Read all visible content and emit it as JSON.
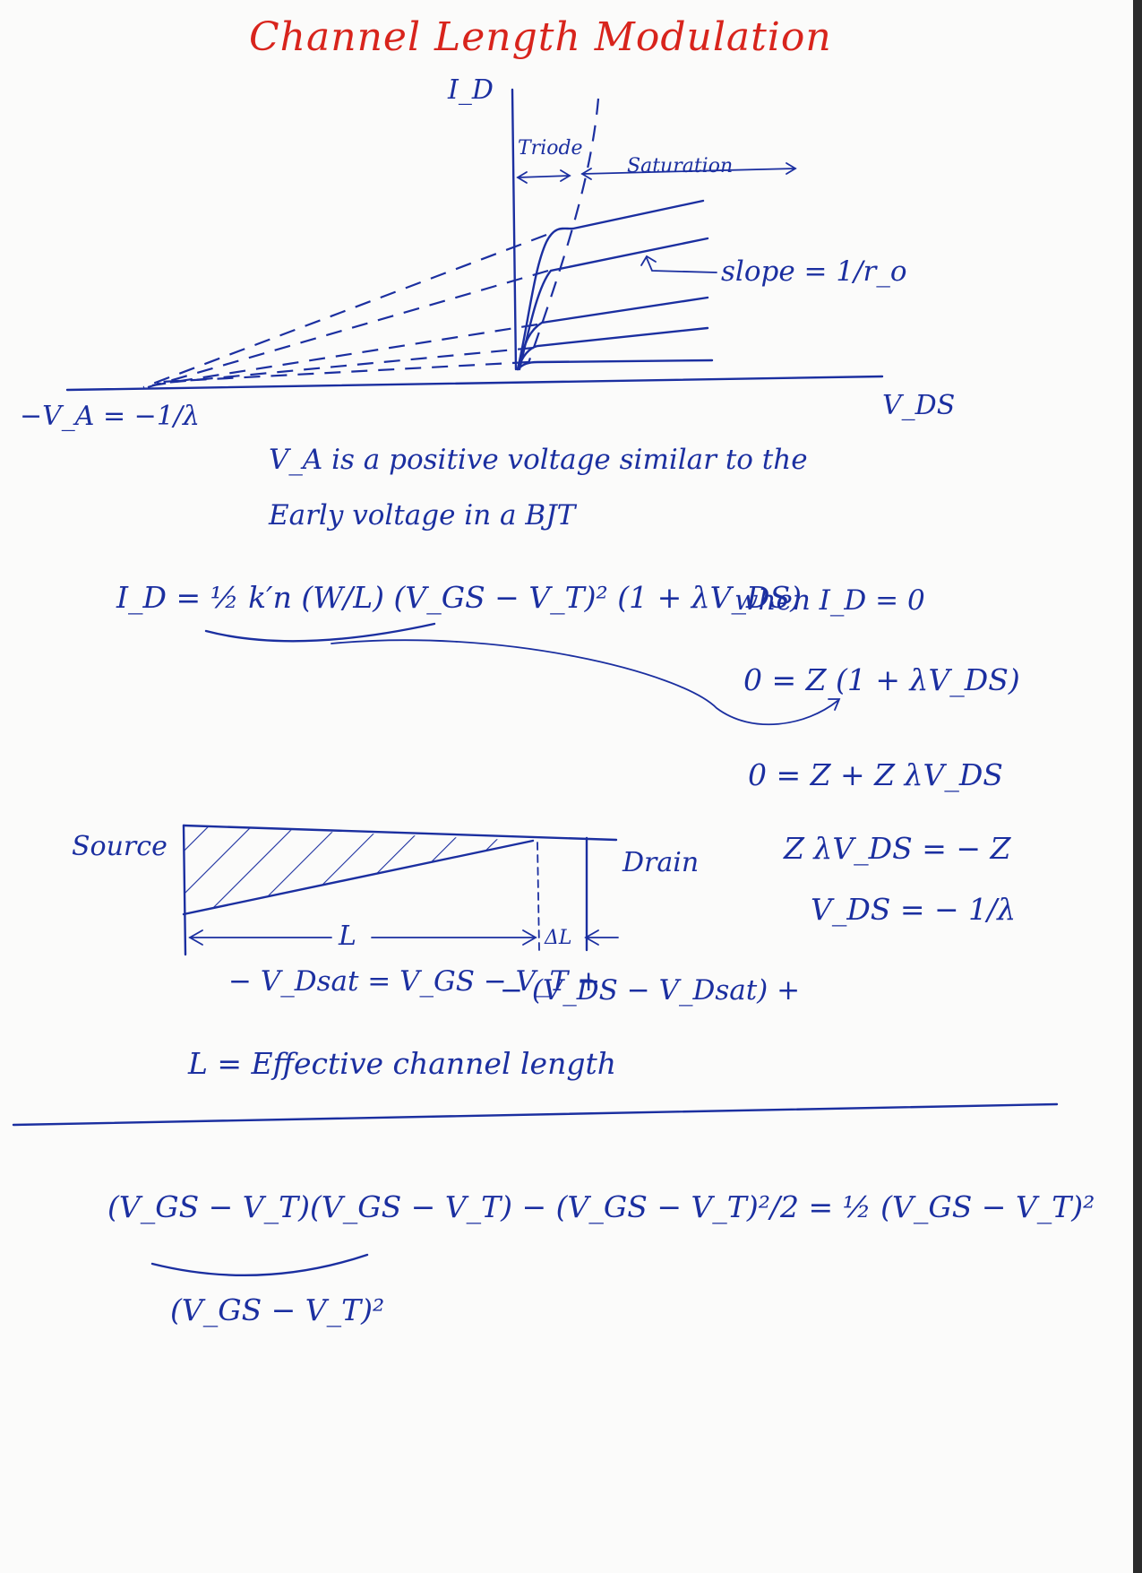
{
  "title": "Channel Length Modulation",
  "graph": {
    "y_axis_label": "I_D",
    "x_axis_label": "V_DS",
    "triode_label": "Triode",
    "saturation_label": "Saturation",
    "slope_label": "slope = 1/r_o",
    "intercept_label": "−V_A = −1/λ"
  },
  "notes": {
    "line1": "V_A is a positive voltage similar to the",
    "line2": "Early voltage in a BJT"
  },
  "equation_main": "I_D = ½ k′n (W/L) (V_GS − V_T)² (1 + λV_DS)",
  "derivation": {
    "when": "when I_D = 0",
    "step1": "0 = Z (1 + λV_DS)",
    "step2": "0 = Z + Z λV_DS",
    "step3": "Z λV_DS = − Z",
    "step4": "V_DS = − 1/λ"
  },
  "channel": {
    "source_label": "Source",
    "drain_label": "Drain",
    "length_label": "L",
    "delta_label": "ΔL",
    "vdsat_label": "− V_Dsat = V_GS − V_T +",
    "vds_label": "− (V_DS − V_Dsat) +"
  },
  "effective_length_note": "L = Effective channel length",
  "bottom_equation": "(V_GS − V_T)(V_GS − V_T) − (V_GS − V_T)²/2 = ½ (V_GS − V_T)²",
  "bottom_note": "(V_GS − V_T)²"
}
